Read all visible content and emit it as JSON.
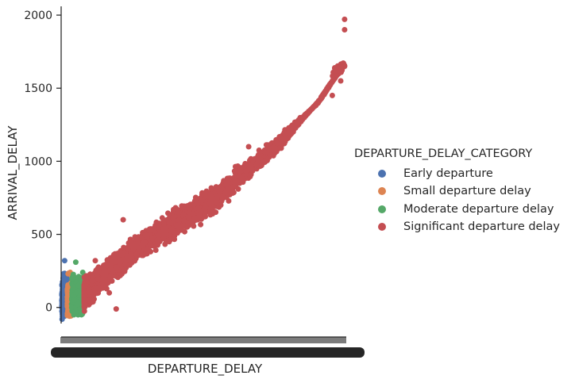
{
  "chart_data": {
    "type": "scatter",
    "xlabel": "DEPARTURE_DELAY",
    "ylabel": "ARRIVAL_DELAY",
    "yticks": [
      0,
      500,
      1000,
      1500,
      2000
    ],
    "ylim": [
      -110,
      2060
    ],
    "xlim": [
      -45,
      2000
    ],
    "x_ticklabels_legible": false,
    "legend": {
      "title": "DEPARTURE_DELAY_CATEGORY",
      "placement": "right",
      "entries": [
        {
          "label": "Early departure",
          "color": "#4c72b0"
        },
        {
          "label": "Small departure delay",
          "color": "#dd8452"
        },
        {
          "label": "Moderate departure delay",
          "color": "#55a868"
        },
        {
          "label": "Significant departure delay",
          "color": "#c44e52"
        }
      ]
    },
    "series": [
      {
        "name": "Early departure",
        "color": "#4c72b0",
        "x_range": [
          -40,
          0
        ],
        "y_range": [
          -80,
          320
        ],
        "points": [
          [
            -28,
            230
          ],
          [
            -30,
            200
          ],
          [
            -20,
            320
          ],
          [
            -35,
            -60
          ],
          [
            -38,
            -80
          ],
          [
            -25,
            150
          ],
          [
            -15,
            100
          ],
          [
            -10,
            80
          ],
          [
            -5,
            60
          ],
          [
            -1,
            40
          ]
        ]
      },
      {
        "name": "Small departure delay",
        "color": "#dd8452",
        "x_range": [
          0,
          30
        ],
        "y_range": [
          -65,
          240
        ],
        "points": [
          [
            5,
            230
          ],
          [
            10,
            235
          ],
          [
            20,
            240
          ],
          [
            28,
            220
          ],
          [
            15,
            -60
          ],
          [
            8,
            100
          ],
          [
            25,
            150
          ]
        ]
      },
      {
        "name": "Moderate departure delay",
        "color": "#55a868",
        "x_range": [
          30,
          120
        ],
        "y_range": [
          -60,
          310
        ],
        "points": [
          [
            60,
            310
          ],
          [
            110,
            240
          ],
          [
            40,
            200
          ],
          [
            80,
            150
          ],
          [
            100,
            -50
          ],
          [
            50,
            50
          ]
        ]
      },
      {
        "name": "Significant departure delay",
        "color": "#c44e52",
        "x_range": [
          120,
          1988
        ],
        "y_range": [
          -10,
          1971
        ],
        "trend": [
          [
            120,
            20
          ],
          [
            250,
            190
          ],
          [
            500,
            440
          ],
          [
            750,
            700
          ],
          [
            1000,
            900
          ],
          [
            1250,
            1090
          ],
          [
            1500,
            1260
          ],
          [
            1650,
            1380
          ],
          [
            1800,
            1490
          ],
          [
            1900,
            1600
          ],
          [
            1988,
            1655
          ]
        ],
        "upper_envelope": [
          [
            120,
            310
          ],
          [
            500,
            550
          ],
          [
            1000,
            800
          ],
          [
            1500,
            1150
          ],
          [
            1800,
            1350
          ],
          [
            1950,
            1600
          ]
        ],
        "lower_envelope": [
          [
            120,
            -10
          ],
          [
            500,
            280
          ],
          [
            1000,
            500
          ],
          [
            1500,
            980
          ],
          [
            1800,
            1380
          ],
          [
            1980,
            1650
          ]
        ],
        "points": [
          [
            1988,
            1971
          ],
          [
            1988,
            1900
          ],
          [
            1988,
            1650
          ],
          [
            1960,
            1550
          ],
          [
            1900,
            1450
          ],
          [
            1700,
            1300
          ],
          [
            1100,
            700
          ],
          [
            400,
            600
          ],
          [
            200,
            320
          ],
          [
            300,
            100
          ],
          [
            350,
            -10
          ],
          [
            800,
            550
          ],
          [
            1300,
            1100
          ],
          [
            1600,
            1220
          ],
          [
            900,
            640
          ]
        ]
      }
    ]
  }
}
